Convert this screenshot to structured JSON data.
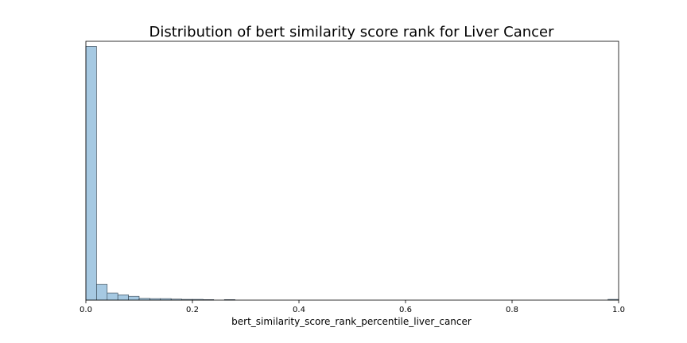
{
  "chart_data": {
    "type": "bar",
    "title": "Distribution of bert similarity score rank for Liver Cancer",
    "xlabel": "bert_similarity_score_rank_percentile_liver_cancer",
    "ylabel": "",
    "xlim": [
      0,
      1
    ],
    "ylim": [
      0,
      1.02
    ],
    "xticks": [
      {
        "value": 0.0,
        "label": "0.0"
      },
      {
        "value": 0.2,
        "label": "0.2"
      },
      {
        "value": 0.4,
        "label": "0.4"
      },
      {
        "value": 0.6,
        "label": "0.6"
      },
      {
        "value": 0.8,
        "label": "0.8"
      },
      {
        "value": 1.0,
        "label": "1.0"
      }
    ],
    "y_ticks_visible": false,
    "grid": false,
    "bar_color": "#a6c9e2",
    "edge_color": "#2f3e4a",
    "bin_width": 0.02,
    "bins": [
      {
        "start": 0.0,
        "value": 1.0
      },
      {
        "start": 0.02,
        "value": 0.062
      },
      {
        "start": 0.04,
        "value": 0.028
      },
      {
        "start": 0.06,
        "value": 0.021
      },
      {
        "start": 0.08,
        "value": 0.015
      },
      {
        "start": 0.1,
        "value": 0.007
      },
      {
        "start": 0.12,
        "value": 0.006
      },
      {
        "start": 0.14,
        "value": 0.006
      },
      {
        "start": 0.16,
        "value": 0.004
      },
      {
        "start": 0.18,
        "value": 0.003
      },
      {
        "start": 0.2,
        "value": 0.003
      },
      {
        "start": 0.22,
        "value": 0.002
      },
      {
        "start": 0.26,
        "value": 0.002
      },
      {
        "start": 0.98,
        "value": 0.003
      }
    ]
  }
}
